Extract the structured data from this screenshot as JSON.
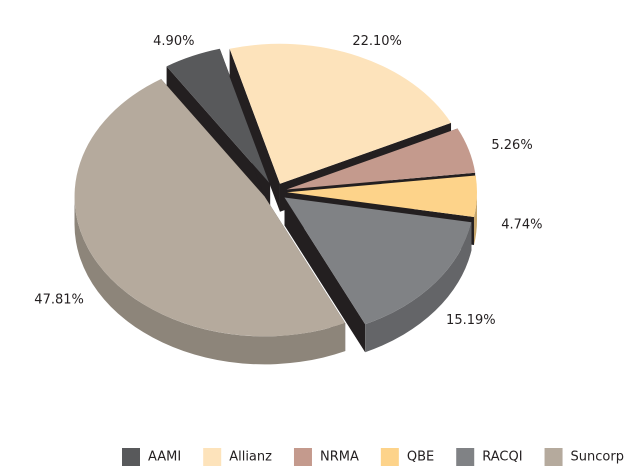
{
  "chart_data": {
    "type": "pie",
    "categories": [
      "AAMI",
      "Allianz",
      "NRMA",
      "QBE",
      "RACQI",
      "Suncorp"
    ],
    "values": [
      4.9,
      22.1,
      5.26,
      4.74,
      15.19,
      47.81
    ],
    "value_labels": [
      "4.90%",
      "22.10%",
      "5.26%",
      "4.74%",
      "15.19%",
      "47.81%"
    ],
    "colors": [
      "#58595b",
      "#fde3bb",
      "#c49a8d",
      "#fdd38a",
      "#808285",
      "#b5aa9d"
    ],
    "legend": "bottom"
  }
}
